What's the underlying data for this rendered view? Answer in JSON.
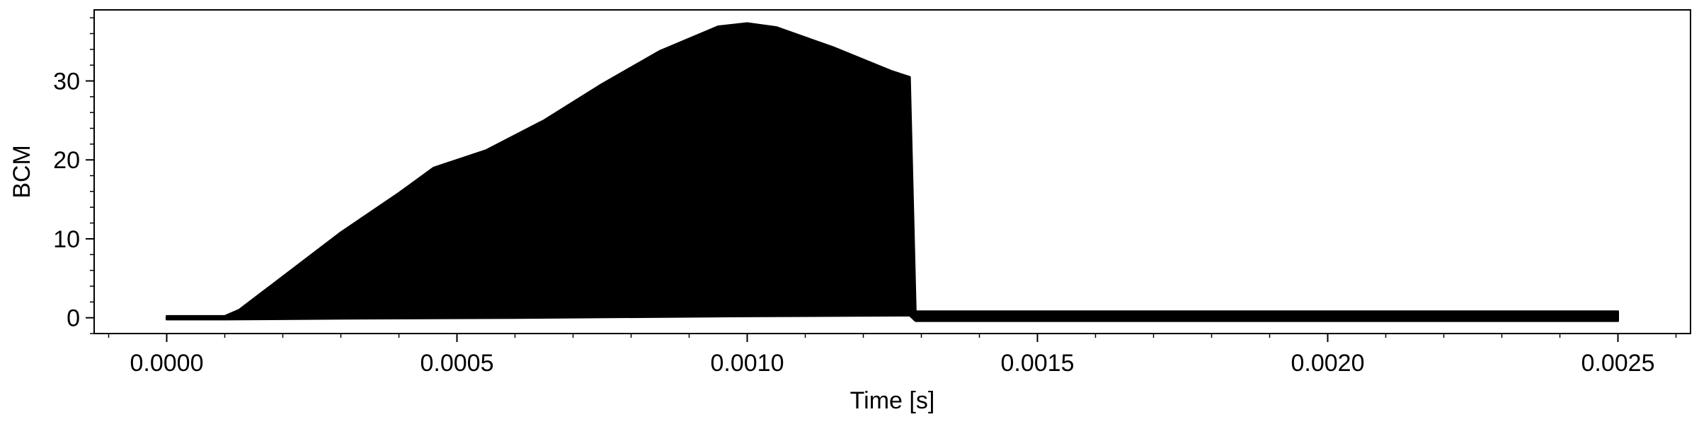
{
  "chart_data": {
    "type": "area",
    "title": "",
    "xlabel": "Time [s]",
    "ylabel": "BCM",
    "xlim": [
      -0.000125,
      0.002625
    ],
    "ylim": [
      -2,
      39
    ],
    "xticks": [
      0.0,
      0.0005,
      0.001,
      0.0015,
      0.002,
      0.0025
    ],
    "xtick_labels": [
      "0.0000",
      "0.0005",
      "0.0010",
      "0.0015",
      "0.0020",
      "0.0025"
    ],
    "yticks": [
      0,
      10,
      20,
      30
    ],
    "ytick_labels": [
      "0",
      "10",
      "20",
      "30"
    ],
    "grid": false,
    "series": [
      {
        "color": "#000000",
        "envelope_upper": {
          "x": [
            0.0,
            0.0001,
            0.000125,
            0.0002,
            0.0003,
            0.0004,
            0.00046,
            0.00055,
            0.00065,
            0.00075,
            0.00085,
            0.00095,
            0.001,
            0.00105,
            0.00115,
            0.00125,
            0.00128,
            0.00129,
            0.0015,
            0.002,
            0.0025
          ],
          "y": [
            0.2,
            0.2,
            1.0,
            5.2,
            10.8,
            15.8,
            19.0,
            21.2,
            25.0,
            29.6,
            33.8,
            36.9,
            37.3,
            36.8,
            34.2,
            31.2,
            30.5,
            0.8,
            0.8,
            0.8,
            0.8
          ]
        },
        "envelope_lower": {
          "x": [
            0.0,
            0.0001,
            0.0003,
            0.0006,
            0.001,
            0.00128,
            0.00129,
            0.0015,
            0.002,
            0.0025
          ],
          "y": [
            -0.2,
            -0.2,
            -0.1,
            0.0,
            0.2,
            0.3,
            -0.4,
            -0.4,
            -0.4,
            -0.4
          ]
        }
      }
    ]
  }
}
